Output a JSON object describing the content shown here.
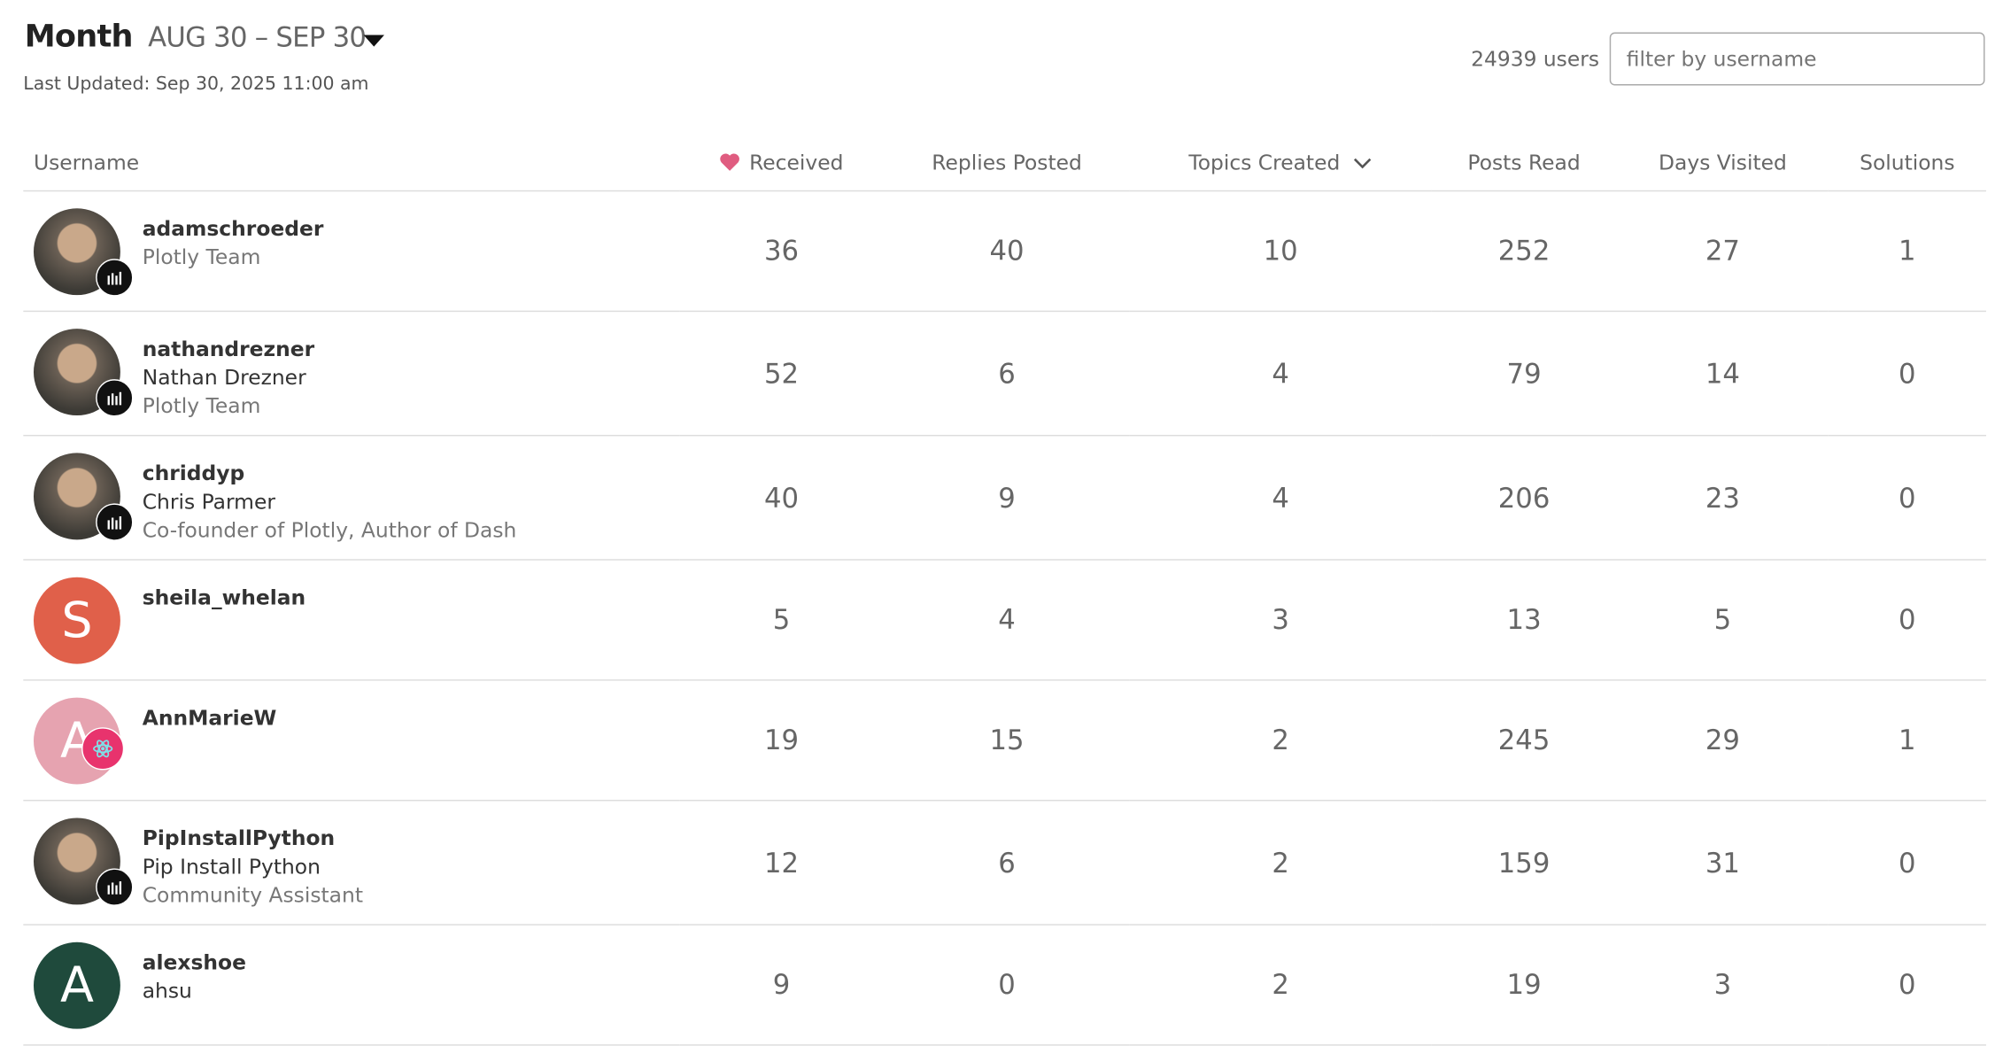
{
  "header": {
    "title": "Month",
    "range": "AUG 30 – SEP 30",
    "updated": "Last Updated: Sep 30, 2025 11:00 am"
  },
  "user_count": "24939 users",
  "filter_placeholder": "filter by username",
  "table": {
    "columns": [
      "Username",
      "Received",
      "Replies Posted",
      "Topics Created",
      "Posts Read",
      "Days Visited",
      "Solutions"
    ],
    "rows": [
      {
        "username": "adamschroeder",
        "title": "Plotly Team",
        "stats": [
          36,
          40,
          10,
          252,
          27,
          1
        ]
      },
      {
        "username": "nathandrezner",
        "name": "Nathan Drezner",
        "title": "Plotly Team",
        "stats": [
          52,
          6,
          4,
          79,
          14,
          0
        ]
      },
      {
        "username": "chriddyp",
        "name": "Chris Parmer",
        "title": "Co-founder of Plotly, Author of Dash",
        "stats": [
          40,
          9,
          4,
          206,
          23,
          0
        ]
      },
      {
        "username": "sheila_whelan",
        "avatar_letter": "S",
        "avatar_color": "#e0604a",
        "stats": [
          5,
          4,
          3,
          13,
          5,
          0
        ]
      },
      {
        "username": "AnnMarieW",
        "avatar_letter": "A",
        "avatar_color": "#e6a3b0",
        "stats": [
          19,
          15,
          2,
          245,
          29,
          1
        ]
      },
      {
        "username": "PipInstallPython",
        "name": "Pip Install Python",
        "title": "Community Assistant",
        "stats": [
          12,
          6,
          2,
          159,
          31,
          0
        ]
      },
      {
        "username": "alexshoe",
        "name": "ahsu",
        "avatar_letter": "A",
        "avatar_color": "#1f4a3c",
        "stats": [
          9,
          0,
          2,
          19,
          3,
          0
        ]
      }
    ]
  }
}
